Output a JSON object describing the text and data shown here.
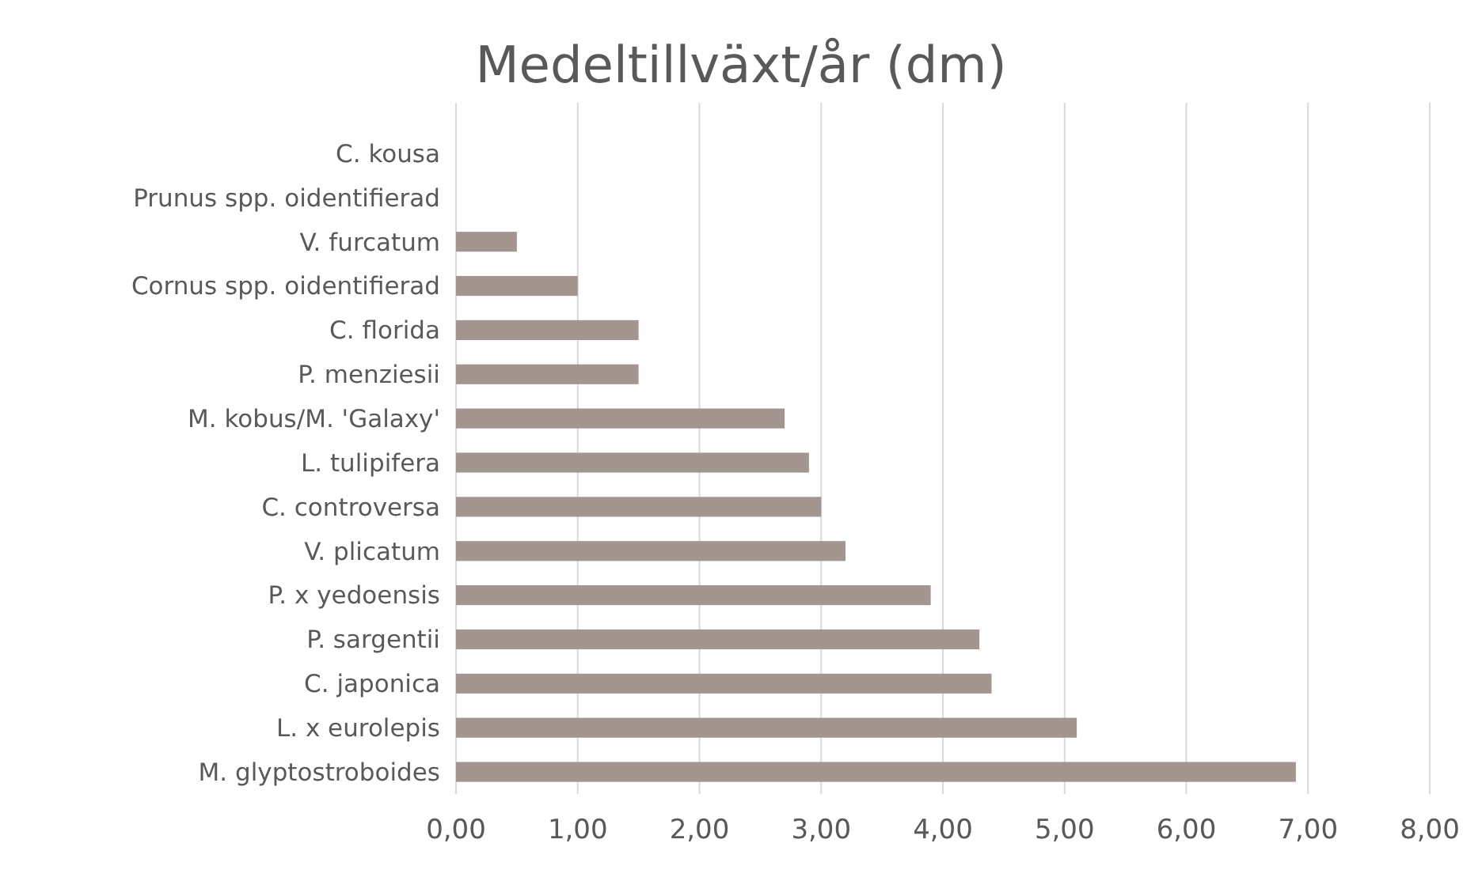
{
  "chart_data": {
    "type": "bar",
    "orientation": "horizontal",
    "title": "Medeltillväxt/år (dm)",
    "categories": [
      "C. kousa",
      "Prunus spp. oidentifierad",
      "V. furcatum",
      "Cornus spp. oidentifierad",
      "C. florida",
      "P. menziesii",
      "M. kobus/M. 'Galaxy'",
      "L. tulipifera",
      "C. controversa",
      "V. plicatum",
      "P. x yedoensis",
      "P. sargentii",
      "C. japonica",
      "L. x eurolepis",
      "M. glyptostroboides"
    ],
    "values": [
      0,
      0,
      0.5,
      1.0,
      1.5,
      1.5,
      2.7,
      2.9,
      3.0,
      3.2,
      3.9,
      4.3,
      4.4,
      5.1,
      6.9
    ],
    "color": "#a39590",
    "xlim": [
      0,
      8
    ],
    "xticks": [
      {
        "value": 0,
        "label": "0,00"
      },
      {
        "value": 1,
        "label": "1,00"
      },
      {
        "value": 2,
        "label": "2,00"
      },
      {
        "value": 3,
        "label": "3,00"
      },
      {
        "value": 4,
        "label": "4,00"
      },
      {
        "value": 5,
        "label": "5,00"
      },
      {
        "value": 6,
        "label": "6,00"
      },
      {
        "value": 7,
        "label": "7,00"
      },
      {
        "value": 8,
        "label": "8,00"
      }
    ],
    "grid": "x"
  }
}
